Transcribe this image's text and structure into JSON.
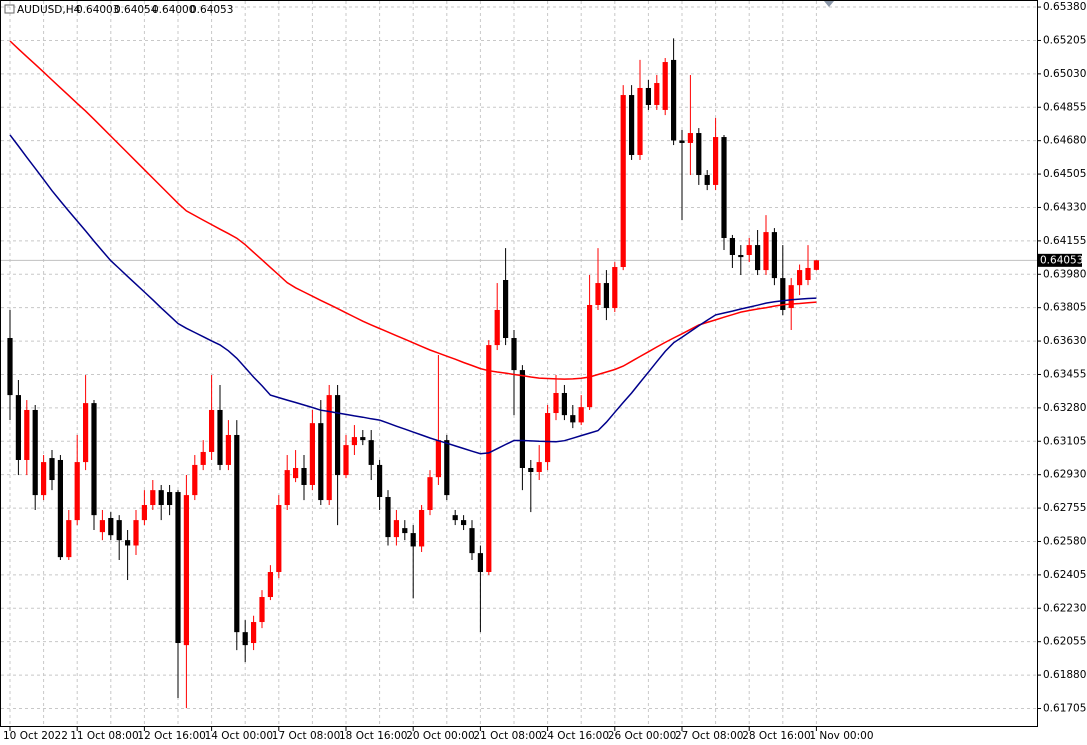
{
  "chart_data": {
    "type": "candlestick",
    "title": "AUDUSD,H4",
    "header_values": [
      "0.64003",
      "0.64054",
      "0.64000",
      "0.64053"
    ],
    "up_color": "#ff0000",
    "down_color": "#000000",
    "grid": true,
    "categories": [
      "10 Oct 2022",
      null,
      null,
      null,
      null,
      null,
      null,
      null,
      "11 Oct 08:00",
      null,
      null,
      null,
      null,
      null,
      null,
      null,
      "12 Oct 16:00",
      null,
      null,
      null,
      null,
      null,
      null,
      null,
      "14 Oct 00:00",
      null,
      null,
      null,
      null,
      null,
      null,
      null,
      "17 Oct 08:00",
      null,
      null,
      null,
      null,
      null,
      null,
      null,
      "18 Oct 16:00",
      null,
      null,
      null,
      null,
      null,
      null,
      null,
      "20 Oct 00:00",
      null,
      null,
      null,
      null,
      null,
      null,
      null,
      "21 Oct 08:00",
      null,
      null,
      null,
      null,
      null,
      null,
      null,
      "24 Oct 16:00",
      null,
      null,
      null,
      null,
      null,
      null,
      null,
      "26 Oct 00:00",
      null,
      null,
      null,
      null,
      null,
      null,
      null,
      "27 Oct 08:00",
      null,
      null,
      null,
      null,
      null,
      null,
      null,
      "28 Oct 16:00",
      null,
      null,
      null,
      null,
      null,
      null,
      null,
      "1 Nov 00:00"
    ],
    "open": [
      0.63646,
      0.63347,
      0.63007,
      0.63269,
      0.62823,
      0.63017,
      0.63007,
      0.62498,
      0.62692,
      0.62996,
      0.63305,
      0.62629,
      0.62703,
      0.62692,
      0.62587,
      0.62559,
      0.62692,
      0.62771,
      0.62849,
      0.62839,
      0.62839,
      0.62037,
      0.62823,
      0.62981,
      0.63049,
      0.63269,
      0.62981,
      0.63138,
      0.62105,
      0.62048,
      0.62158,
      0.62289,
      0.6242,
      0.62771,
      0.62912,
      0.62965,
      0.62876,
      0.632,
      0.62797,
      0.63347,
      0.62928,
      0.63085,
      0.63127,
      0.63111,
      0.62981,
      0.62813,
      0.62603,
      0.6265,
      0.62624,
      0.62554,
      0.62745,
      0.62917,
      0.63111,
      0.62718,
      0.62692,
      0.6265,
      0.62519,
      0.6242,
      0.63609,
      0.6395,
      0.63646,
      0.63478,
      0.62965,
      0.62944,
      0.62996,
      0.63253,
      0.63358,
      0.63242,
      0.63204,
      0.63284,
      0.63819,
      0.63934,
      0.63803,
      0.64018,
      0.64919,
      0.64605,
      0.64956,
      0.64867,
      0.64841,
      0.65103,
      0.64681,
      0.64668,
      0.6472,
      0.645,
      0.64448,
      0.64699,
      0.6417,
      0.64081,
      0.64081,
      0.64133,
      0.64002,
      0.64201,
      0.6396,
      0.63803,
      0.63923,
      0.6395,
      0.64003
    ],
    "high": [
      0.63793,
      0.63426,
      0.63321,
      0.63295,
      0.63033,
      0.63059,
      0.63033,
      0.62745,
      0.63138,
      0.63452,
      0.63321,
      0.62745,
      0.62734,
      0.62718,
      0.6264,
      0.62745,
      0.62849,
      0.62902,
      0.62876,
      0.62876,
      0.62849,
      0.62928,
      0.63033,
      0.63111,
      0.63452,
      0.634,
      0.63216,
      0.63216,
      0.62168,
      0.62191,
      0.62325,
      0.62456,
      0.62823,
      0.63033,
      0.63059,
      0.63033,
      0.63269,
      0.63321,
      0.634,
      0.634,
      0.63138,
      0.6319,
      0.63164,
      0.63164,
      0.63007,
      0.62849,
      0.62745,
      0.62692,
      0.62666,
      0.62771,
      0.62954,
      0.63557,
      0.63138,
      0.62745,
      0.62718,
      0.62692,
      0.62559,
      0.63635,
      0.63934,
      0.64117,
      0.63688,
      0.63504,
      0.63007,
      0.63085,
      0.63295,
      0.63452,
      0.634,
      0.63295,
      0.63347,
      0.63976,
      0.64117,
      0.64002,
      0.64044,
      0.64971,
      0.64971,
      0.65103,
      0.64998,
      0.65024,
      0.65113,
      0.65216,
      0.64736,
      0.65024,
      0.64746,
      0.64526,
      0.64799,
      0.6471,
      0.64186,
      0.64133,
      0.6417,
      0.64212,
      0.6429,
      0.64222,
      0.64133,
      0.6396,
      0.64031,
      0.64133,
      0.64054
    ],
    "low": [
      0.63216,
      0.62928,
      0.62928,
      0.62745,
      0.62797,
      0.62849,
      0.62483,
      0.62483,
      0.62666,
      0.62954,
      0.6264,
      0.62587,
      0.62587,
      0.62483,
      0.62378,
      0.62509,
      0.62666,
      0.62745,
      0.62692,
      0.62718,
      0.6176,
      0.61707,
      0.62797,
      0.62954,
      0.63007,
      0.62954,
      0.62954,
      0.62011,
      0.61948,
      0.62011,
      0.62126,
      0.62273,
      0.62388,
      0.62745,
      0.62891,
      0.62797,
      0.62849,
      0.62771,
      0.62771,
      0.62666,
      0.62912,
      0.63033,
      0.63085,
      0.62902,
      0.62745,
      0.62559,
      0.62559,
      0.62587,
      0.62282,
      0.62525,
      0.62718,
      0.62876,
      0.62797,
      0.62666,
      0.6264,
      0.62483,
      0.62105,
      0.62404,
      0.63583,
      0.63609,
      0.63242,
      0.62849,
      0.62734,
      0.62902,
      0.62954,
      0.63216,
      0.63216,
      0.63174,
      0.6319,
      0.63269,
      0.63793,
      0.6374,
      0.63782,
      0.64002,
      0.64579,
      0.64579,
      0.64841,
      0.64841,
      0.64814,
      0.64657,
      0.64264,
      0.645,
      0.64448,
      0.64421,
      0.64421,
      0.64107,
      0.64013,
      0.63976,
      0.64044,
      0.63976,
      0.63976,
      0.63923,
      0.63766,
      0.63688,
      0.63871,
      0.63923,
      0.64
    ],
    "close": [
      0.63347,
      0.63007,
      0.63269,
      0.62823,
      0.62996,
      0.62902,
      0.62498,
      0.62692,
      0.62996,
      0.63305,
      0.62718,
      0.62692,
      0.62613,
      0.62587,
      0.62559,
      0.62692,
      0.62771,
      0.62849,
      0.62771,
      0.62771,
      0.62048,
      0.62823,
      0.62981,
      0.63049,
      0.63269,
      0.62981,
      0.63138,
      0.62105,
      0.62037,
      0.62158,
      0.62289,
      0.6242,
      0.62771,
      0.62954,
      0.62965,
      0.62876,
      0.632,
      0.62797,
      0.63347,
      0.62928,
      0.63085,
      0.63127,
      0.63111,
      0.62981,
      0.62813,
      0.62603,
      0.62692,
      0.62624,
      0.62554,
      0.62745,
      0.62917,
      0.63111,
      0.62823,
      0.62692,
      0.62666,
      0.62519,
      0.6242,
      0.63609,
      0.63793,
      0.63646,
      0.63478,
      0.62965,
      0.62944,
      0.62996,
      0.63253,
      0.63358,
      0.63242,
      0.63204,
      0.63284,
      0.63819,
      0.63934,
      0.63803,
      0.64018,
      0.64919,
      0.64605,
      0.64956,
      0.64867,
      0.64982,
      0.65092,
      0.64681,
      0.64668,
      0.6472,
      0.645,
      0.64448,
      0.64699,
      0.6417,
      0.64081,
      0.6407,
      0.64133,
      0.64002,
      0.64201,
      0.6396,
      0.63793,
      0.63923,
      0.64002,
      0.64013,
      0.64053
    ],
    "series": [
      {
        "color": "#ff0000",
        "values": [
          0.65202,
          0.65161,
          0.6512,
          0.6508,
          0.65039,
          0.64998,
          0.64957,
          0.64916,
          0.64875,
          0.64835,
          0.64792,
          0.64748,
          0.64704,
          0.6466,
          0.64616,
          0.64572,
          0.64528,
          0.64484,
          0.6444,
          0.64396,
          0.64352,
          0.64312,
          0.64288,
          0.64264,
          0.6424,
          0.64216,
          0.64193,
          0.64169,
          0.64135,
          0.64095,
          0.64056,
          0.64016,
          0.63976,
          0.63936,
          0.63909,
          0.63887,
          0.63865,
          0.63843,
          0.63822,
          0.638,
          0.63778,
          0.63756,
          0.63734,
          0.63715,
          0.63696,
          0.63677,
          0.63658,
          0.6364,
          0.63621,
          0.63602,
          0.63583,
          0.63567,
          0.63551,
          0.63535,
          0.63518,
          0.63502,
          0.63486,
          0.63475,
          0.63468,
          0.63462,
          0.63455,
          0.63449,
          0.63442,
          0.63436,
          0.63434,
          0.63432,
          0.63431,
          0.63432,
          0.63435,
          0.63442,
          0.63455,
          0.63468,
          0.63481,
          0.63499,
          0.63524,
          0.63549,
          0.63574,
          0.63599,
          0.63623,
          0.63646,
          0.63668,
          0.63691,
          0.63714,
          0.63728,
          0.63741,
          0.63755,
          0.63768,
          0.63782,
          0.6379,
          0.63798,
          0.63805,
          0.63813,
          0.6382,
          0.63824,
          0.63827,
          0.63831,
          0.63834
        ]
      },
      {
        "color": "#00008b",
        "values": [
          0.6471,
          0.64652,
          0.64593,
          0.64535,
          0.64477,
          0.64418,
          0.64364,
          0.64311,
          0.64259,
          0.64207,
          0.64154,
          0.64102,
          0.64051,
          0.6401,
          0.63969,
          0.63928,
          0.63887,
          0.63846,
          0.63804,
          0.63763,
          0.63722,
          0.63697,
          0.63675,
          0.63653,
          0.63631,
          0.6361,
          0.63579,
          0.6354,
          0.63491,
          0.63441,
          0.63396,
          0.63347,
          0.63334,
          0.63321,
          0.63308,
          0.63295,
          0.63282,
          0.63268,
          0.63261,
          0.63253,
          0.63246,
          0.63238,
          0.63231,
          0.63223,
          0.63216,
          0.632,
          0.63184,
          0.63169,
          0.63153,
          0.63138,
          0.63122,
          0.63108,
          0.63095,
          0.63081,
          0.63067,
          0.63053,
          0.6304,
          0.63044,
          0.63066,
          0.63088,
          0.63109,
          0.63109,
          0.63107,
          0.63105,
          0.63104,
          0.63102,
          0.63108,
          0.63121,
          0.63135,
          0.63148,
          0.63161,
          0.63205,
          0.63257,
          0.63308,
          0.63358,
          0.63413,
          0.63467,
          0.63522,
          0.63576,
          0.63621,
          0.6365,
          0.6368,
          0.6371,
          0.63739,
          0.63767,
          0.63777,
          0.63787,
          0.63798,
          0.63808,
          0.63818,
          0.63829,
          0.63836,
          0.63841,
          0.63846,
          0.6385,
          0.63853,
          0.63855
        ]
      }
    ],
    "current_price": {
      "value": 0.64053,
      "label": "0.64053"
    },
    "ylim": [
      0.61608,
      0.65417
    ],
    "yticks": [
      {
        "value": 0.6538,
        "label": "0.65380"
      },
      {
        "value": 0.65205,
        "label": "0.65205"
      },
      {
        "value": 0.6503,
        "label": "0.65030"
      },
      {
        "value": 0.64855,
        "label": "0.64855"
      },
      {
        "value": 0.6468,
        "label": "0.64680"
      },
      {
        "value": 0.64505,
        "label": "0.64505"
      },
      {
        "value": 0.6433,
        "label": "0.64330"
      },
      {
        "value": 0.64155,
        "label": "0.64155"
      },
      {
        "value": 0.6398,
        "label": "0.63980"
      },
      {
        "value": 0.63805,
        "label": "0.63805"
      },
      {
        "value": 0.6363,
        "label": "0.63630"
      },
      {
        "value": 0.63455,
        "label": "0.63455"
      },
      {
        "value": 0.6328,
        "label": "0.63280"
      },
      {
        "value": 0.63105,
        "label": "0.63105"
      },
      {
        "value": 0.6293,
        "label": "0.62930"
      },
      {
        "value": 0.62755,
        "label": "0.62755"
      },
      {
        "value": 0.6258,
        "label": "0.62580"
      },
      {
        "value": 0.62405,
        "label": "0.62405"
      },
      {
        "value": 0.6223,
        "label": "0.62230"
      },
      {
        "value": 0.62055,
        "label": "0.62055"
      },
      {
        "value": 0.6188,
        "label": "0.61880"
      },
      {
        "value": 0.61705,
        "label": "0.61705"
      }
    ]
  }
}
